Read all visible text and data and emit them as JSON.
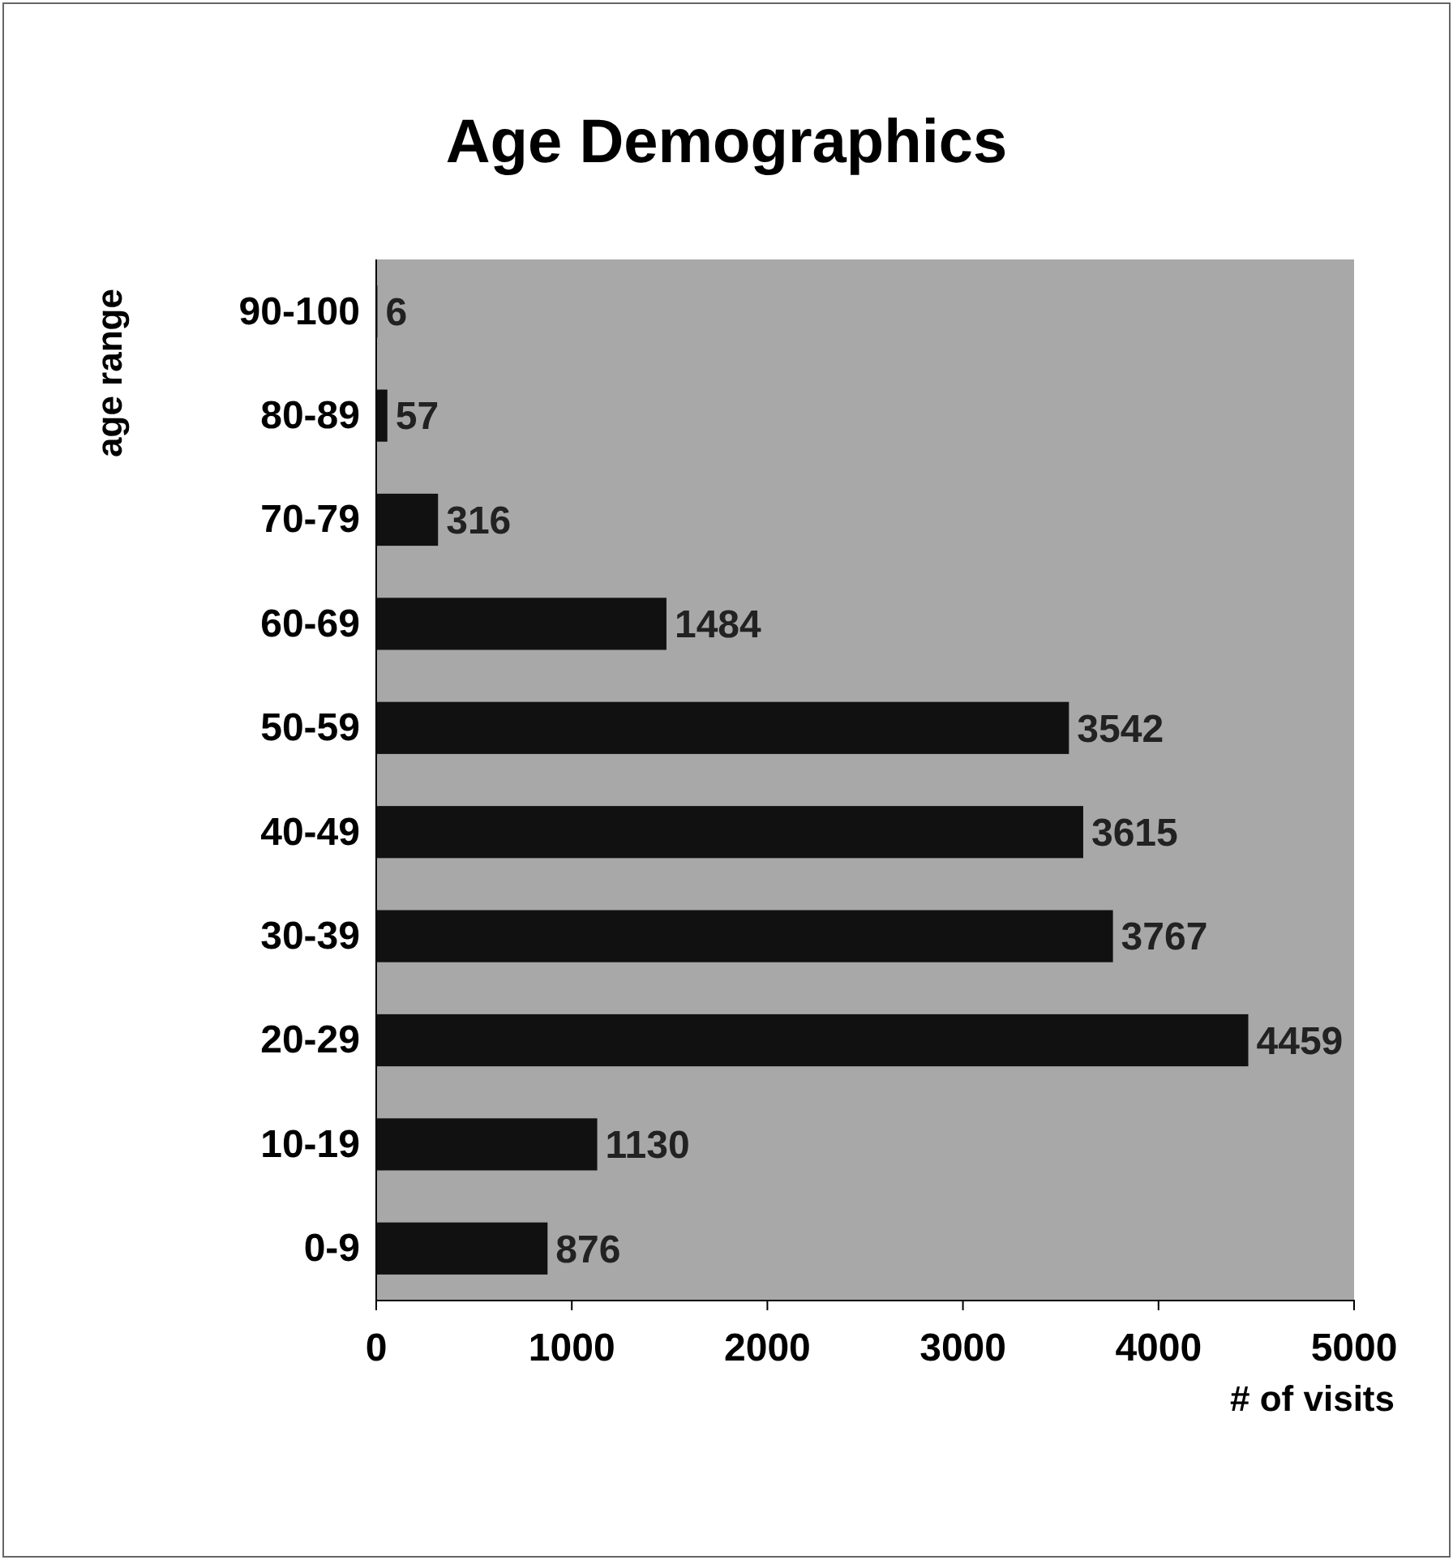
{
  "chart_data": {
    "type": "bar",
    "orientation": "horizontal",
    "title": "Age Demographics",
    "xlabel": "# of visits",
    "ylabel": "age range",
    "categories": [
      "90-100",
      "80-89",
      "70-79",
      "60-69",
      "50-59",
      "40-49",
      "30-39",
      "20-29",
      "10-19",
      "0-9"
    ],
    "values": [
      6,
      57,
      316,
      1484,
      3542,
      3615,
      3767,
      4459,
      1130,
      876
    ],
    "color": "#111111",
    "xlim": [
      0,
      5000
    ],
    "xticks": [
      0,
      1000,
      2000,
      3000,
      4000,
      5000
    ],
    "data_labels": true
  }
}
